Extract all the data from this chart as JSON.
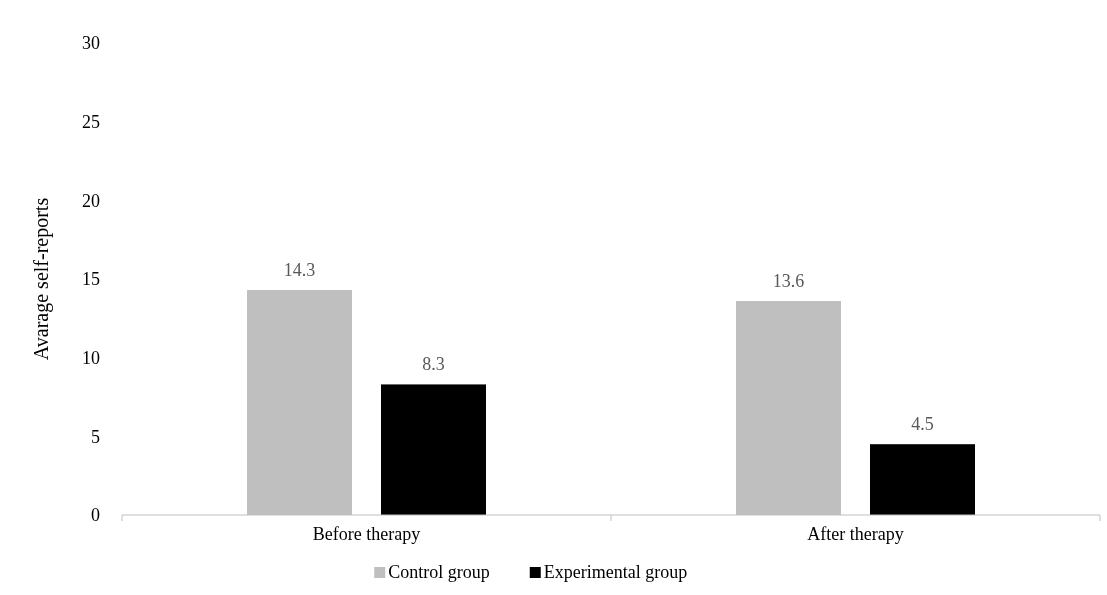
{
  "chart_data": {
    "type": "bar",
    "ylabel": "Avarage self-reports",
    "categories": [
      "Before therapy",
      "After therapy"
    ],
    "series": [
      {
        "name": "Control group",
        "color": "#bfbfbf",
        "values": [
          14.3,
          13.6
        ]
      },
      {
        "name": "Experimental group",
        "color": "#000000",
        "values": [
          8.3,
          4.5
        ]
      }
    ],
    "ylim": [
      0,
      30
    ],
    "yticks": [
      0,
      5,
      10,
      15,
      20,
      25,
      30
    ],
    "data_labels": true,
    "grid": false,
    "legend": "bottom"
  }
}
